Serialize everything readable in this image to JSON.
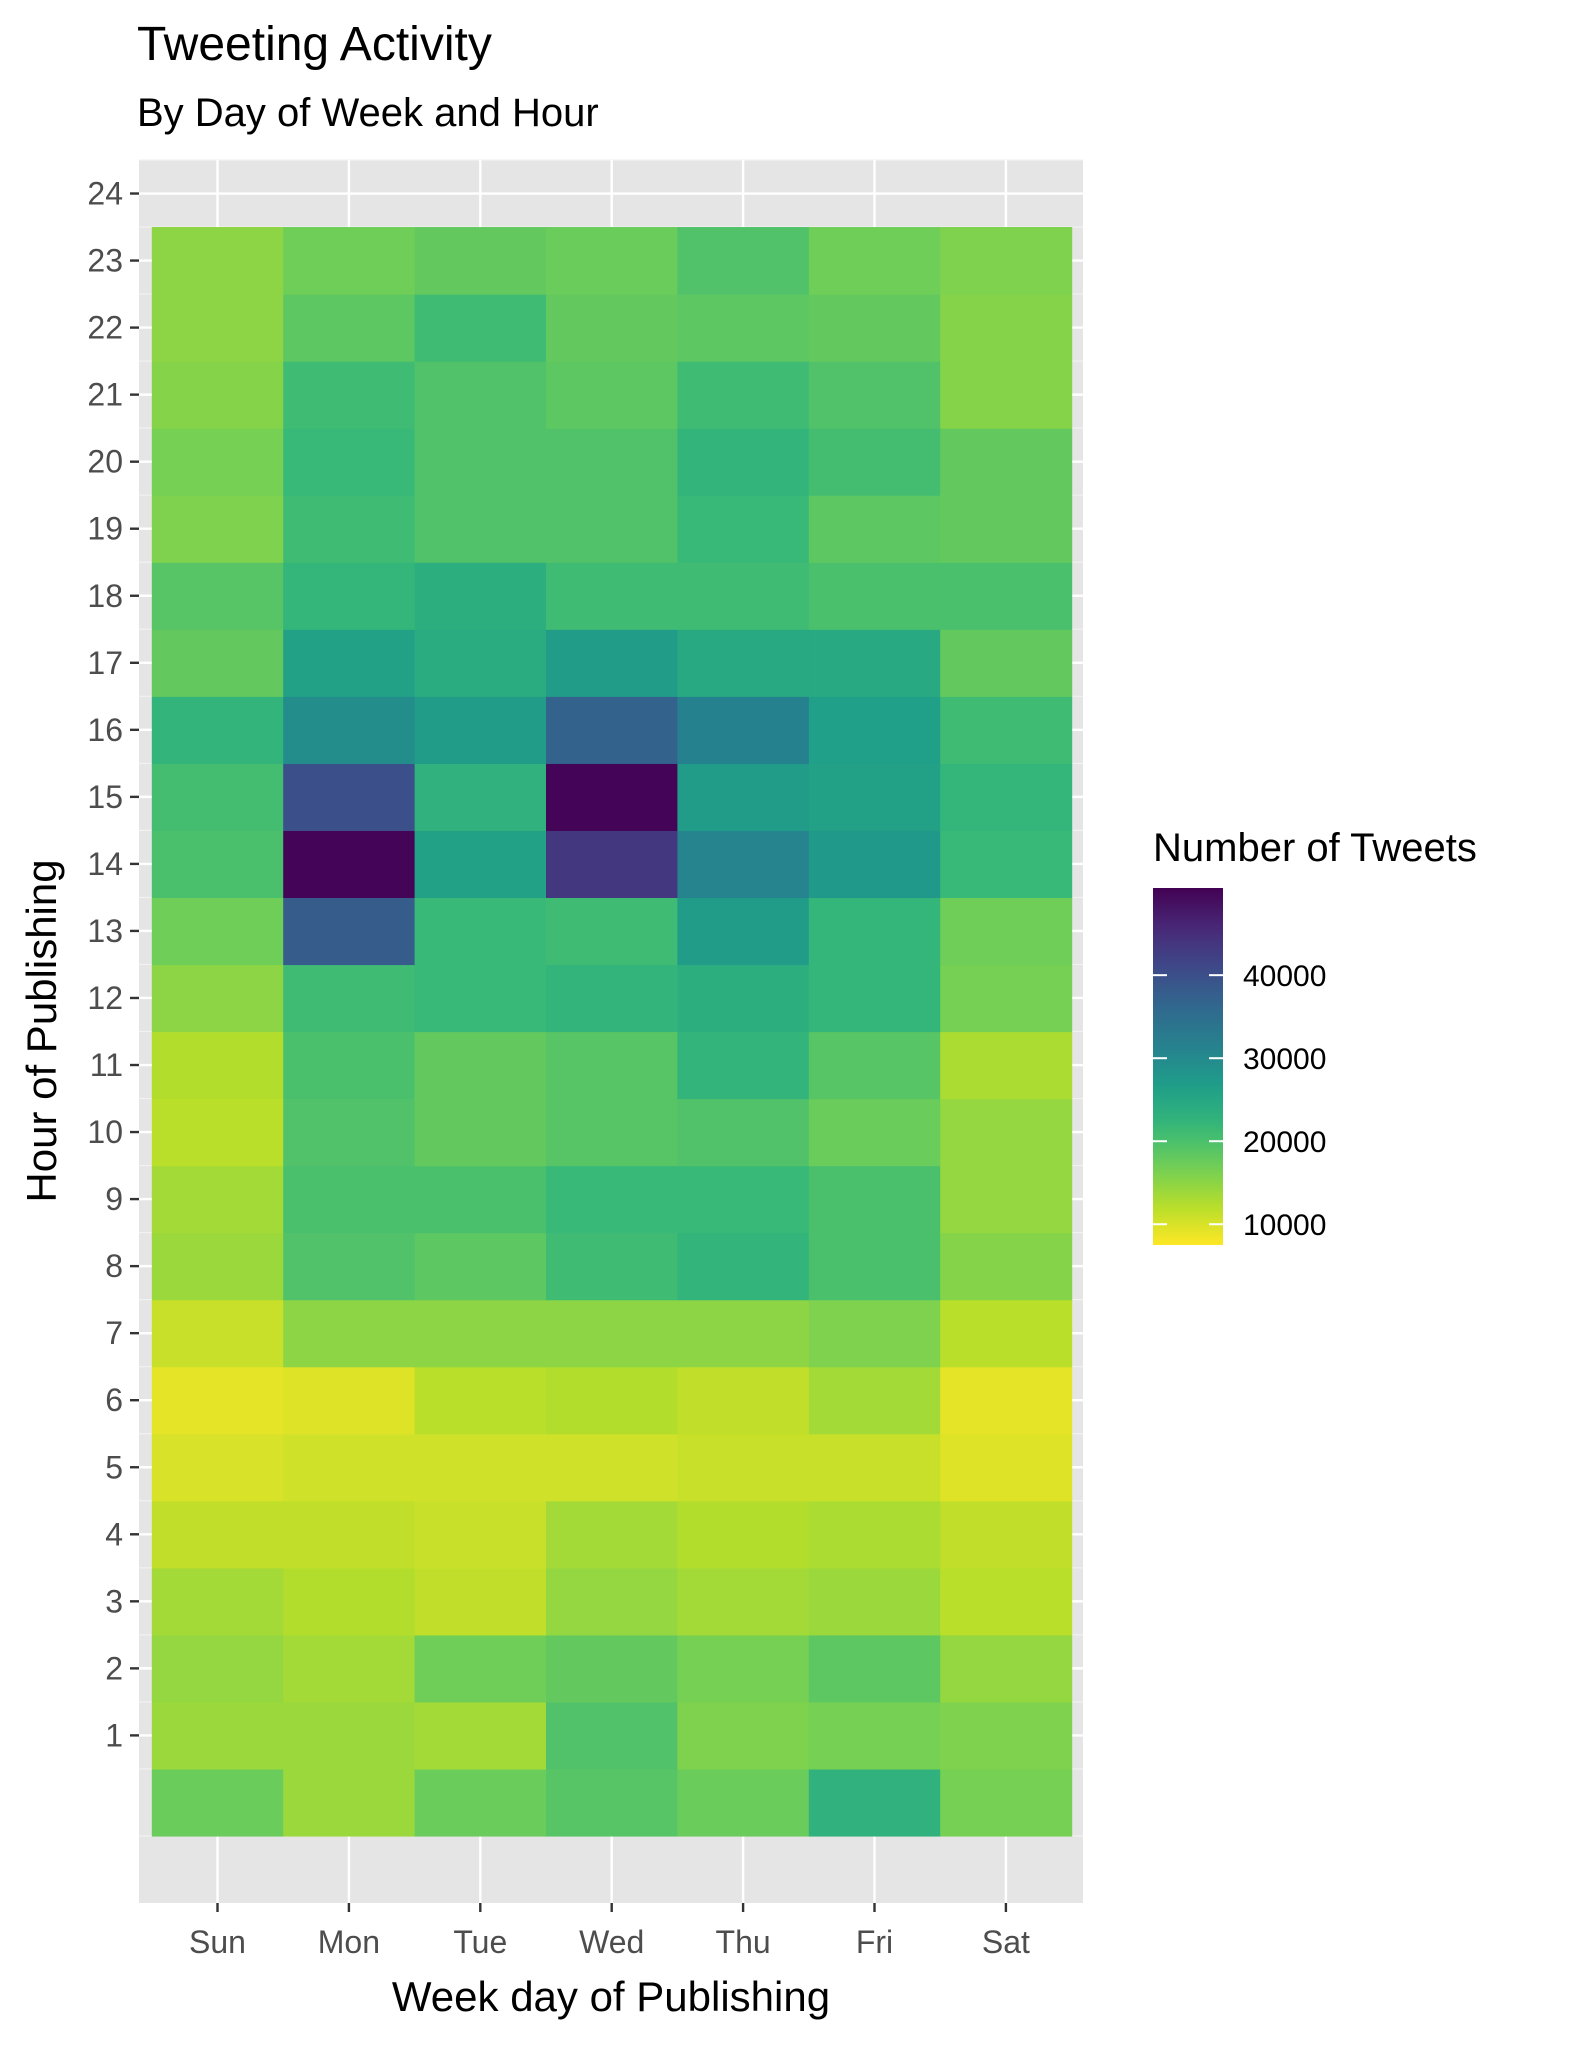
{
  "chart_data": {
    "type": "heatmap",
    "title": "Tweeting Activity",
    "subtitle": "By Day of Week and Hour",
    "xlabel": "Week day of Publishing",
    "ylabel": "Hour of Publishing",
    "x_categories": [
      "Sun",
      "Mon",
      "Tue",
      "Wed",
      "Thu",
      "Fri",
      "Sat"
    ],
    "y_ticks": [
      "1",
      "2",
      "3",
      "4",
      "5",
      "6",
      "7",
      "8",
      "9",
      "10",
      "11",
      "12",
      "13",
      "14",
      "15",
      "16",
      "17",
      "18",
      "19",
      "20",
      "21",
      "22",
      "23",
      "24"
    ],
    "y_values": [
      0,
      1,
      2,
      3,
      4,
      5,
      6,
      7,
      8,
      9,
      10,
      11,
      12,
      13,
      14,
      15,
      16,
      17,
      18,
      19,
      20,
      21,
      22,
      23
    ],
    "ylim": [
      -1.5,
      24.5
    ],
    "legend": {
      "title": "Number of Tweets",
      "breaks": [
        10000,
        20000,
        30000,
        40000
      ],
      "break_labels": [
        "10000",
        "20000",
        "30000",
        "40000"
      ],
      "limits": [
        7500,
        50500
      ],
      "palette": "viridis-reversed",
      "placement": "right"
    },
    "grid": true,
    "values": [
      [
        17500,
        14000,
        17500,
        19000,
        17500,
        23000,
        16500
      ],
      [
        14000,
        14000,
        13500,
        19500,
        16000,
        16500,
        16000
      ],
      [
        14500,
        13500,
        17000,
        18000,
        16500,
        18500,
        14500
      ],
      [
        13500,
        12500,
        11500,
        14500,
        13500,
        14000,
        12000
      ],
      [
        11500,
        11500,
        11000,
        13500,
        12500,
        13000,
        11500
      ],
      [
        10000,
        10500,
        10500,
        10500,
        11000,
        11000,
        9500
      ],
      [
        9000,
        9500,
        12000,
        12500,
        11500,
        13500,
        9000
      ],
      [
        11000,
        15000,
        15000,
        15000,
        15000,
        16000,
        12000
      ],
      [
        14000,
        19500,
        18500,
        21000,
        22500,
        20000,
        15500
      ],
      [
        13500,
        20000,
        20000,
        21500,
        21500,
        20000,
        14500
      ],
      [
        12000,
        19500,
        18000,
        19000,
        19500,
        17500,
        14500
      ],
      [
        12500,
        20000,
        18000,
        19000,
        22500,
        19000,
        13000
      ],
      [
        15000,
        21000,
        21500,
        22500,
        23500,
        22000,
        16500
      ],
      [
        17000,
        38000,
        21500,
        21000,
        27000,
        22000,
        17000
      ],
      [
        20000,
        50000,
        26000,
        43500,
        31000,
        27500,
        21500
      ],
      [
        20500,
        40000,
        23000,
        50000,
        27000,
        26000,
        22000
      ],
      [
        22500,
        29500,
        27000,
        37000,
        31500,
        26500,
        21000
      ],
      [
        18000,
        26000,
        24000,
        27000,
        24500,
        24500,
        18000
      ],
      [
        19000,
        22000,
        23500,
        21000,
        21000,
        20000,
        20000
      ],
      [
        16000,
        21000,
        19500,
        19500,
        21500,
        18500,
        18000
      ],
      [
        16500,
        21500,
        19500,
        19500,
        22500,
        20500,
        18000
      ],
      [
        15500,
        21000,
        19500,
        18500,
        21000,
        19500,
        15500
      ],
      [
        15000,
        18500,
        21000,
        18000,
        18500,
        18000,
        15500
      ],
      [
        15000,
        17000,
        18000,
        17500,
        19500,
        17000,
        16000
      ]
    ]
  }
}
